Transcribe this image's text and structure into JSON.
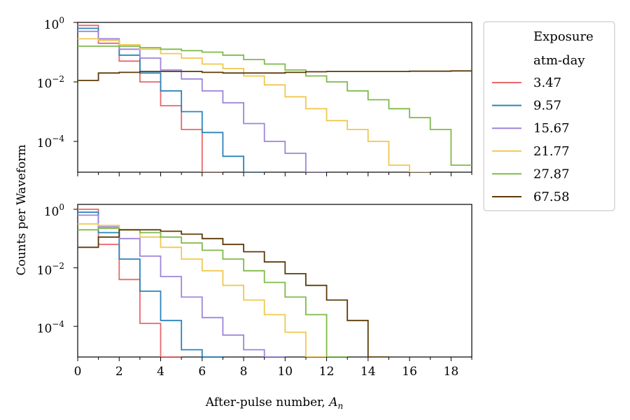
{
  "chart_data": [
    {
      "type": "step",
      "panel": "top",
      "xlim": [
        0,
        19
      ],
      "ylim_log10": [
        -5,
        0
      ],
      "yscale": "log",
      "ytick_labels": [
        {
          "base": "10",
          "exp": "0"
        },
        {
          "base": "10",
          "exp": "−2"
        },
        {
          "base": "10",
          "exp": "−4"
        }
      ],
      "series": [
        {
          "name": "3.47",
          "color": "#e8686b",
          "log10": [
            -0.1,
            -0.7,
            -1.3,
            -2.0,
            -2.8,
            -3.6,
            -5.2
          ]
        },
        {
          "name": "9.57",
          "color": "#2b83ba",
          "log10": [
            -0.2,
            -0.6,
            -1.1,
            -1.7,
            -2.3,
            -3.0,
            -3.7,
            -4.5,
            -5.2
          ]
        },
        {
          "name": "15.67",
          "color": "#9e85d9",
          "log10": [
            -0.3,
            -0.55,
            -0.9,
            -1.2,
            -1.6,
            -1.9,
            -2.3,
            -2.7,
            -3.4,
            -4.0,
            -4.4,
            -5.2
          ]
        },
        {
          "name": "21.77",
          "color": "#f0c850",
          "log10": [
            -0.55,
            -0.6,
            -0.75,
            -0.9,
            -1.05,
            -1.2,
            -1.4,
            -1.55,
            -1.8,
            -2.1,
            -2.5,
            -2.9,
            -3.3,
            -3.6,
            -4.0,
            -4.8,
            -5.2
          ]
        },
        {
          "name": "27.87",
          "color": "#7fba4a",
          "log10": [
            -0.8,
            -0.8,
            -0.8,
            -0.85,
            -0.9,
            -0.95,
            -1.0,
            -1.1,
            -1.25,
            -1.4,
            -1.6,
            -1.8,
            -2.0,
            -2.3,
            -2.6,
            -2.9,
            -3.2,
            -3.6,
            -4.8
          ]
        },
        {
          "name": "67.58",
          "color": "#5c3a08",
          "log10": [
            -1.95,
            -1.7,
            -1.68,
            -1.65,
            -1.65,
            -1.65,
            -1.68,
            -1.7,
            -1.7,
            -1.7,
            -1.68,
            -1.66,
            -1.65,
            -1.65,
            -1.65,
            -1.65,
            -1.64,
            -1.64,
            -1.63
          ]
        }
      ]
    },
    {
      "type": "step",
      "panel": "bottom",
      "xlim": [
        0,
        19
      ],
      "ylim_log10": [
        -5,
        0.2
      ],
      "yscale": "log",
      "xlabel": "After-pulse number, ",
      "xlabel_var": "A",
      "xlabel_sub": "n",
      "x_ticks": [
        "0",
        "2",
        "4",
        "6",
        "8",
        "10",
        "12",
        "14",
        "16",
        "18"
      ],
      "ytick_labels": [
        {
          "base": "10",
          "exp": "0"
        },
        {
          "base": "10",
          "exp": "−2"
        },
        {
          "base": "10",
          "exp": "−4"
        }
      ],
      "series": [
        {
          "name": "3.47",
          "color": "#e8686b",
          "log10": [
            0.0,
            -1.2,
            -2.4,
            -3.9,
            -5.2
          ]
        },
        {
          "name": "9.57",
          "color": "#2b83ba",
          "log10": [
            -0.1,
            -0.8,
            -1.7,
            -2.8,
            -3.8,
            -4.8,
            -5.2
          ]
        },
        {
          "name": "15.67",
          "color": "#9e85d9",
          "log10": [
            -0.2,
            -0.6,
            -1.0,
            -1.6,
            -2.3,
            -3.0,
            -3.7,
            -4.3,
            -4.8,
            -5.2
          ]
        },
        {
          "name": "21.77",
          "color": "#f0c850",
          "log10": [
            -0.5,
            -0.55,
            -0.7,
            -0.95,
            -1.3,
            -1.7,
            -2.1,
            -2.6,
            -3.1,
            -3.6,
            -4.2,
            -5.2
          ]
        },
        {
          "name": "27.87",
          "color": "#7fba4a",
          "log10": [
            -0.7,
            -0.65,
            -0.7,
            -0.8,
            -0.95,
            -1.15,
            -1.4,
            -1.7,
            -2.1,
            -2.5,
            -3.0,
            -3.6,
            -5.2
          ]
        },
        {
          "name": "67.58",
          "color": "#5c3a08",
          "log10": [
            -1.3,
            -0.95,
            -0.7,
            -0.7,
            -0.75,
            -0.85,
            -1.0,
            -1.2,
            -1.45,
            -1.8,
            -2.2,
            -2.6,
            -3.1,
            -3.8,
            -5.2
          ]
        }
      ]
    }
  ],
  "ylabel": "Counts per Waveform",
  "legend": {
    "title_line1": "Exposure",
    "title_line2": "atm-day",
    "entries": [
      {
        "label": "3.47",
        "color": "#e8686b"
      },
      {
        "label": "9.57",
        "color": "#2b83ba"
      },
      {
        "label": "15.67",
        "color": "#9e85d9"
      },
      {
        "label": "21.77",
        "color": "#f0c850"
      },
      {
        "label": "27.87",
        "color": "#7fba4a"
      },
      {
        "label": "67.58",
        "color": "#5c3a08"
      }
    ]
  }
}
